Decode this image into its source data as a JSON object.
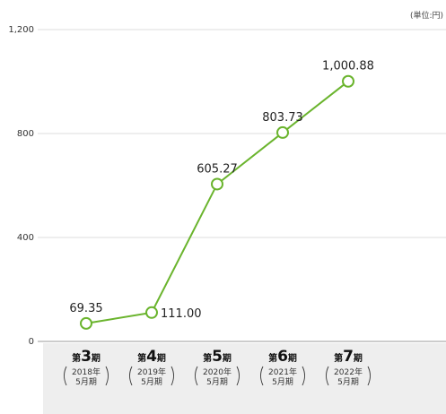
{
  "chart_data": {
    "type": "line",
    "unit_label": "(単位:円)",
    "ylim": [
      0,
      1200
    ],
    "yticks": [
      0,
      400,
      800,
      1200
    ],
    "ytick_labels": [
      "0",
      "400",
      "800",
      "1,200"
    ],
    "grid": true,
    "categories": [
      {
        "prefix": "第",
        "number": "3",
        "suffix": "期",
        "year": "2018年",
        "month": "5月期"
      },
      {
        "prefix": "第",
        "number": "4",
        "suffix": "期",
        "year": "2019年",
        "month": "5月期"
      },
      {
        "prefix": "第",
        "number": "5",
        "suffix": "期",
        "year": "2020年",
        "month": "5月期"
      },
      {
        "prefix": "第",
        "number": "6",
        "suffix": "期",
        "year": "2021年",
        "month": "5月期"
      },
      {
        "prefix": "第",
        "number": "7",
        "suffix": "期",
        "year": "2022年",
        "month": "5月期"
      }
    ],
    "series": [
      {
        "values": [
          69.35,
          111.0,
          605.27,
          803.73,
          1000.88
        ],
        "labels": [
          "69.35",
          "111.00",
          "605.27",
          "803.73",
          "1,000.88"
        ],
        "color": "#6ab42d"
      }
    ]
  }
}
